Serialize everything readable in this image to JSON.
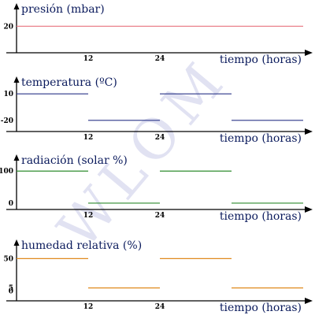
{
  "watermark": "WLOM",
  "x_axis": {
    "label": "tiempo (horas)",
    "ticks": [
      12,
      24
    ],
    "range": [
      0,
      48
    ]
  },
  "panels": [
    {
      "id": "presion",
      "title": "presión (mbar)",
      "y_ticks": [
        {
          "value": 20,
          "label": "20"
        }
      ],
      "y_range": [
        0,
        30
      ],
      "color": "#e8737f",
      "segments": [
        {
          "x0": 0,
          "x1": 48,
          "y": 20
        }
      ]
    },
    {
      "id": "temperatura",
      "title": "temperatura (ºC)",
      "y_ticks": [
        {
          "value": 10,
          "label": "10"
        },
        {
          "value": -20,
          "label": "-20"
        }
      ],
      "y_range": [
        -30,
        20
      ],
      "color": "#2a3588",
      "segments": [
        {
          "x0": 0,
          "x1": 12,
          "y": 10
        },
        {
          "x0": 12,
          "x1": 24,
          "y": -20
        },
        {
          "x0": 24,
          "x1": 36,
          "y": 10
        },
        {
          "x0": 36,
          "x1": 48,
          "y": -20
        }
      ]
    },
    {
      "id": "radiacion",
      "title": "radiación (solar %)",
      "y_ticks": [
        {
          "value": 100,
          "label": "100"
        },
        {
          "value": 0,
          "label": "0"
        }
      ],
      "y_range": [
        -10,
        130
      ],
      "color": "#2e8b2e",
      "segments": [
        {
          "x0": 0,
          "x1": 12,
          "y": 100
        },
        {
          "x0": 12,
          "x1": 24,
          "y": 0
        },
        {
          "x0": 24,
          "x1": 36,
          "y": 100
        },
        {
          "x0": 36,
          "x1": 48,
          "y": 0
        }
      ]
    },
    {
      "id": "humedad",
      "title": "humedad relativa (%)",
      "y_ticks": [
        {
          "value": 50,
          "label": "50"
        },
        {
          "value": 5,
          "label": "5"
        },
        {
          "value": 0,
          "label": "0"
        }
      ],
      "y_range": [
        -10,
        65
      ],
      "color": "#e08a1e",
      "segments": [
        {
          "x0": 0,
          "x1": 12,
          "y": 50
        },
        {
          "x0": 12,
          "x1": 24,
          "y": 5
        },
        {
          "x0": 24,
          "x1": 36,
          "y": 50
        },
        {
          "x0": 36,
          "x1": 48,
          "y": 5
        }
      ]
    }
  ]
}
